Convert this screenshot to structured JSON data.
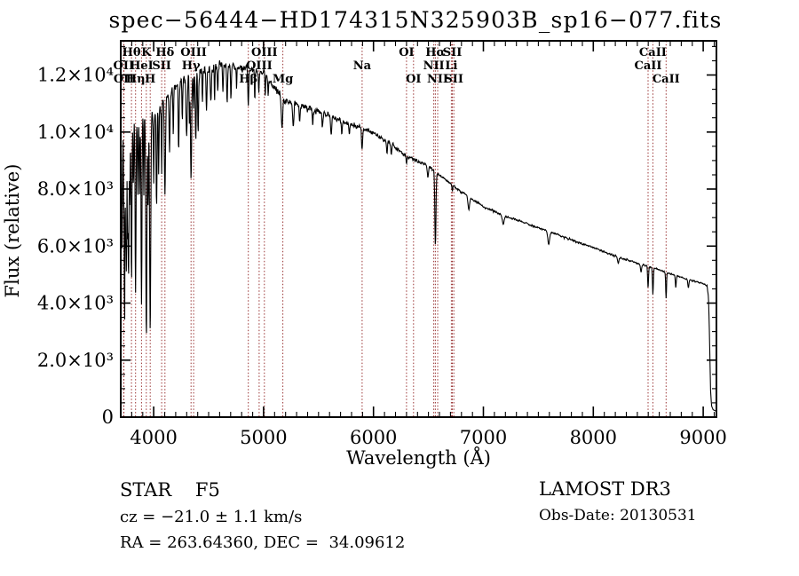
{
  "annotations": {
    "class_line": "STAR    F5",
    "cz_line": "cz = −21.0 ± 1.1 km/s",
    "radec_line": "RA = 263.64360, DEC =  34.09612",
    "release": "LAMOST DR3",
    "obs_date": "Obs-Date: 20130531"
  },
  "chart_data": {
    "type": "line",
    "title": "spec−56444−HD174315N325903B_sp16−077.fits",
    "xlabel": "Wavelength (Å)",
    "ylabel": "Flux (relative)",
    "xlim": [
      3700,
      9120
    ],
    "ylim": [
      0,
      13200
    ],
    "x_minor_step": 100,
    "y_minor_step": 500,
    "grid": false,
    "line_color": "#000000",
    "marker_line_color": "#993333",
    "background": "#ffffff",
    "x_ticks": [
      {
        "value": 4000,
        "label": "4000"
      },
      {
        "value": 5000,
        "label": "5000"
      },
      {
        "value": 6000,
        "label": "6000"
      },
      {
        "value": 7000,
        "label": "7000"
      },
      {
        "value": 8000,
        "label": "8000"
      },
      {
        "value": 9000,
        "label": "9000"
      }
    ],
    "y_ticks": [
      {
        "value": 0,
        "label": "0"
      },
      {
        "value": 2000,
        "label": "2.0×10³"
      },
      {
        "value": 4000,
        "label": "4.0×10³"
      },
      {
        "value": 6000,
        "label": "6.0×10³"
      },
      {
        "value": 8000,
        "label": "8.0×10³"
      },
      {
        "value": 10000,
        "label": "1.0×10⁴"
      },
      {
        "value": 12000,
        "label": "1.2×10⁴"
      }
    ],
    "marked_lines": [
      {
        "text": "OII",
        "wavelength": 3727,
        "row": 2
      },
      {
        "text": "OII",
        "wavelength": 3729,
        "row": 3
      },
      {
        "text": "Hθ",
        "wavelength": 3798,
        "row": 1
      },
      {
        "text": "Hη",
        "wavelength": 3835,
        "row": 3
      },
      {
        "text": "HeI",
        "wavelength": 3889,
        "row": 2
      },
      {
        "text": "K",
        "wavelength": 3933,
        "row": 1
      },
      {
        "text": "H",
        "wavelength": 3968,
        "row": 3
      },
      {
        "text": "SII",
        "wavelength": 4072,
        "row": 2
      },
      {
        "text": "Hδ",
        "wavelength": 4102,
        "row": 1
      },
      {
        "text": "Hγ",
        "wavelength": 4340,
        "row": 2
      },
      {
        "text": "OIII",
        "wavelength": 4363,
        "row": 1
      },
      {
        "text": "Hβ",
        "wavelength": 4861,
        "row": 3
      },
      {
        "text": "OIII",
        "wavelength": 4959,
        "row": 2
      },
      {
        "text": "OIII",
        "wavelength": 5007,
        "row": 1
      },
      {
        "text": "Mg",
        "wavelength": 5175,
        "row": 3
      },
      {
        "text": "Na",
        "wavelength": 5896,
        "row": 2
      },
      {
        "text": "OI",
        "wavelength": 6300,
        "row": 1
      },
      {
        "text": "OI",
        "wavelength": 6364,
        "row": 3
      },
      {
        "text": "NII",
        "wavelength": 6548,
        "row": 2
      },
      {
        "text": "Hα",
        "wavelength": 6563,
        "row": 1
      },
      {
        "text": "NII",
        "wavelength": 6584,
        "row": 3
      },
      {
        "text": "Li",
        "wavelength": 6708,
        "row": 2
      },
      {
        "text": "SII",
        "wavelength": 6717,
        "row": 1
      },
      {
        "text": "SII",
        "wavelength": 6731,
        "row": 3
      },
      {
        "text": "CaII",
        "wavelength": 8498,
        "row": 2
      },
      {
        "text": "CaII",
        "wavelength": 8542,
        "row": 1
      },
      {
        "text": "CaII",
        "wavelength": 8662,
        "row": 3
      }
    ],
    "continuum_points": [
      [
        3700,
        10100
      ],
      [
        3780,
        10300
      ],
      [
        3900,
        10500
      ],
      [
        4000,
        10700
      ],
      [
        4100,
        11100
      ],
      [
        4200,
        11600
      ],
      [
        4300,
        11900
      ],
      [
        4400,
        12150
      ],
      [
        4500,
        12250
      ],
      [
        4600,
        12350
      ],
      [
        4700,
        12300
      ],
      [
        4800,
        12250
      ],
      [
        4900,
        12150
      ],
      [
        5000,
        12050
      ],
      [
        5100,
        11550
      ],
      [
        5200,
        11050
      ],
      [
        5300,
        11000
      ],
      [
        5400,
        10850
      ],
      [
        5500,
        10700
      ],
      [
        5600,
        10550
      ],
      [
        5700,
        10400
      ],
      [
        5800,
        10250
      ],
      [
        5900,
        10150
      ],
      [
        6000,
        9950
      ],
      [
        6150,
        9600
      ],
      [
        6300,
        9150
      ],
      [
        6400,
        8980
      ],
      [
        6500,
        8800
      ],
      [
        6563,
        8600
      ],
      [
        6700,
        8200
      ],
      [
        6800,
        7900
      ],
      [
        7000,
        7380
      ],
      [
        7200,
        7050
      ],
      [
        7400,
        6780
      ],
      [
        7600,
        6500
      ],
      [
        7800,
        6220
      ],
      [
        8000,
        5950
      ],
      [
        8200,
        5650
      ],
      [
        8400,
        5400
      ],
      [
        8600,
        5170
      ],
      [
        8800,
        4900
      ],
      [
        9000,
        4680
      ],
      [
        9035,
        4600
      ],
      [
        9048,
        4200
      ],
      [
        9058,
        2600
      ],
      [
        9066,
        1000
      ],
      [
        9075,
        400
      ],
      [
        9090,
        260
      ],
      [
        9120,
        200
      ]
    ],
    "absorption_lines": [
      [
        3712,
        0.42,
        4
      ],
      [
        3727,
        0.25,
        3
      ],
      [
        3735,
        0.7,
        3
      ],
      [
        3745,
        0.4,
        3
      ],
      [
        3752,
        0.5,
        3
      ],
      [
        3762,
        0.35,
        3
      ],
      [
        3771,
        0.52,
        4
      ],
      [
        3782,
        0.3,
        3
      ],
      [
        3798,
        0.55,
        4
      ],
      [
        3815,
        0.2,
        3
      ],
      [
        3835,
        0.58,
        4
      ],
      [
        3856,
        0.25,
        3
      ],
      [
        3872,
        0.25,
        3
      ],
      [
        3889,
        0.62,
        4
      ],
      [
        3910,
        0.25,
        3
      ],
      [
        3933,
        0.74,
        5
      ],
      [
        3950,
        0.3,
        3
      ],
      [
        3968,
        0.72,
        5
      ],
      [
        4000,
        0.22,
        3
      ],
      [
        4026,
        0.3,
        4
      ],
      [
        4045,
        0.22,
        3
      ],
      [
        4072,
        0.22,
        3
      ],
      [
        4102,
        0.3,
        5
      ],
      [
        4144,
        0.18,
        4
      ],
      [
        4178,
        0.14,
        3
      ],
      [
        4227,
        0.2,
        4
      ],
      [
        4260,
        0.12,
        3
      ],
      [
        4300,
        0.16,
        6
      ],
      [
        4325,
        0.14,
        3
      ],
      [
        4340,
        0.3,
        5
      ],
      [
        4363,
        0.1,
        3
      ],
      [
        4383,
        0.2,
        4
      ],
      [
        4404,
        0.18,
        4
      ],
      [
        4444,
        0.1,
        3
      ],
      [
        4481,
        0.13,
        4
      ],
      [
        4520,
        0.1,
        4
      ],
      [
        4554,
        0.09,
        3
      ],
      [
        4583,
        0.09,
        3
      ],
      [
        4630,
        0.07,
        4
      ],
      [
        4668,
        0.1,
        4
      ],
      [
        4703,
        0.09,
        4
      ],
      [
        4754,
        0.06,
        3
      ],
      [
        4861,
        0.1,
        4
      ],
      [
        4920,
        0.08,
        3
      ],
      [
        4957,
        0.06,
        3
      ],
      [
        5015,
        0.06,
        3
      ],
      [
        5041,
        0.05,
        3
      ],
      [
        5167,
        0.09,
        6
      ],
      [
        5270,
        0.08,
        5
      ],
      [
        5328,
        0.06,
        4
      ],
      [
        5446,
        0.05,
        4
      ],
      [
        5535,
        0.05,
        4
      ],
      [
        5615,
        0.06,
        5
      ],
      [
        5711,
        0.04,
        4
      ],
      [
        5780,
        0.04,
        4
      ],
      [
        5896,
        0.08,
        5
      ],
      [
        6122,
        0.04,
        4
      ],
      [
        6162,
        0.04,
        4
      ],
      [
        6300,
        0.03,
        3
      ],
      [
        6495,
        0.05,
        5
      ],
      [
        6563,
        0.3,
        5
      ],
      [
        6717,
        0.03,
        3
      ],
      [
        6867,
        0.06,
        7
      ],
      [
        7180,
        0.04,
        9
      ],
      [
        7594,
        0.07,
        8
      ],
      [
        8227,
        0.04,
        6
      ],
      [
        8434,
        0.05,
        5
      ],
      [
        8498,
        0.15,
        4
      ],
      [
        8542,
        0.18,
        4
      ],
      [
        8662,
        0.18,
        4
      ],
      [
        8750,
        0.09,
        4
      ],
      [
        8865,
        0.06,
        5
      ]
    ],
    "noise": {
      "seed": 20130531,
      "sample_step": 3,
      "amplitude_breakpoints": [
        [
          4000,
          0.055
        ],
        [
          4600,
          0.035
        ],
        [
          5600,
          0.022
        ],
        [
          6600,
          0.015
        ],
        [
          7600,
          0.011
        ],
        [
          9200,
          0.012
        ]
      ]
    }
  }
}
